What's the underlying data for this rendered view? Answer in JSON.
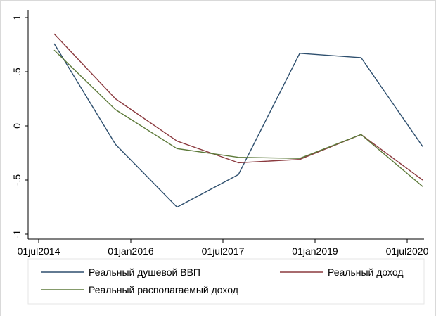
{
  "chart_data": {
    "type": "line",
    "title": "",
    "xlabel": "",
    "ylabel": "",
    "x_ticks": [
      "01jul2014",
      "01jan2016",
      "01jul2017",
      "01jan2019",
      "01jul2020"
    ],
    "y_ticks": [
      "1",
      ".5",
      "0",
      "-.5",
      "-1"
    ],
    "y_tick_values": [
      1,
      0.5,
      0,
      -0.5,
      -1
    ],
    "ylim": [
      -1,
      1
    ],
    "xlim": [
      "2014-07-01",
      "2020-07-01"
    ],
    "grid": false,
    "legend_position": "bottom",
    "series": [
      {
        "name": "Реальный душевой ВВП",
        "color": "#2e4f6e",
        "points": [
          {
            "x": "2014-10-01",
            "y": 0.76
          },
          {
            "x": "2015-10-01",
            "y": -0.17
          },
          {
            "x": "2016-10-01",
            "y": -0.75
          },
          {
            "x": "2017-10-01",
            "y": -0.45
          },
          {
            "x": "2018-10-01",
            "y": 0.67
          },
          {
            "x": "2019-10-01",
            "y": 0.63
          },
          {
            "x": "2020-10-01",
            "y": -0.19
          }
        ]
      },
      {
        "name": "Реальный доход",
        "color": "#8b3a3f",
        "points": [
          {
            "x": "2014-10-01",
            "y": 0.85
          },
          {
            "x": "2015-10-01",
            "y": 0.25
          },
          {
            "x": "2016-10-01",
            "y": -0.14
          },
          {
            "x": "2017-10-01",
            "y": -0.34
          },
          {
            "x": "2018-10-01",
            "y": -0.31
          },
          {
            "x": "2019-10-01",
            "y": -0.08
          },
          {
            "x": "2020-10-01",
            "y": -0.5
          }
        ]
      },
      {
        "name": "Реальный располагаемый доход",
        "color": "#5d7a3a",
        "points": [
          {
            "x": "2014-10-01",
            "y": 0.7
          },
          {
            "x": "2015-10-01",
            "y": 0.15
          },
          {
            "x": "2016-10-01",
            "y": -0.21
          },
          {
            "x": "2017-10-01",
            "y": -0.29
          },
          {
            "x": "2018-10-01",
            "y": -0.3
          },
          {
            "x": "2019-10-01",
            "y": -0.08
          },
          {
            "x": "2020-10-01",
            "y": -0.56
          }
        ]
      }
    ]
  }
}
